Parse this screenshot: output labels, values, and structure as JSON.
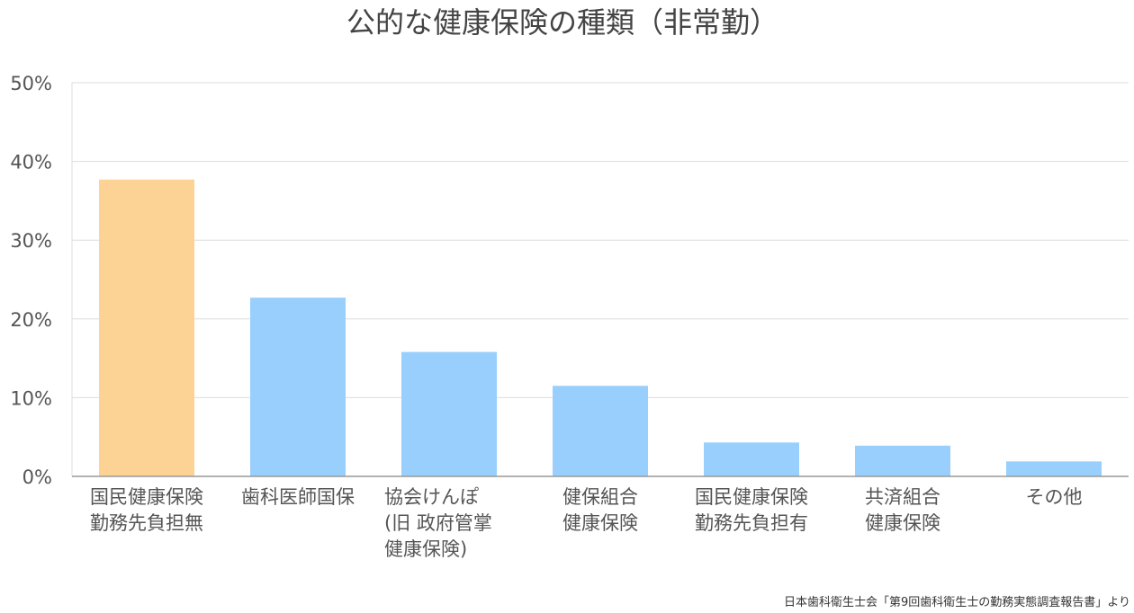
{
  "chart_data": {
    "type": "bar",
    "title": "公的な健康保険の種類（非常勤）",
    "xlabel": "",
    "ylabel": "",
    "ylim": [
      0,
      50
    ],
    "yticks": [
      "0%",
      "10%",
      "20%",
      "30%",
      "40%",
      "50%"
    ],
    "ytick_values": [
      0,
      10,
      20,
      30,
      40,
      50
    ],
    "grid": true,
    "legend": "none",
    "categories": [
      [
        "国民健康保険",
        "勤務先負担無"
      ],
      [
        "歯科医師国保"
      ],
      [
        "協会けんぽ",
        "(旧 政府管掌",
        "健康保険)"
      ],
      [
        "健保組合",
        "健康保険"
      ],
      [
        "国民健康保険",
        "勤務先負担有"
      ],
      [
        "共済組合",
        "健康保険"
      ],
      [
        "その他"
      ]
    ],
    "values": [
      37.7,
      22.7,
      15.8,
      11.5,
      4.3,
      3.9,
      1.9
    ],
    "colors": [
      "#fdd395",
      "#99cffc",
      "#99cffc",
      "#99cffc",
      "#99cffc",
      "#99cffc",
      "#99cffc"
    ]
  },
  "source_note": "日本歯科衛生士会「第9回歯科衛生士の勤務実態調査報告書」より"
}
